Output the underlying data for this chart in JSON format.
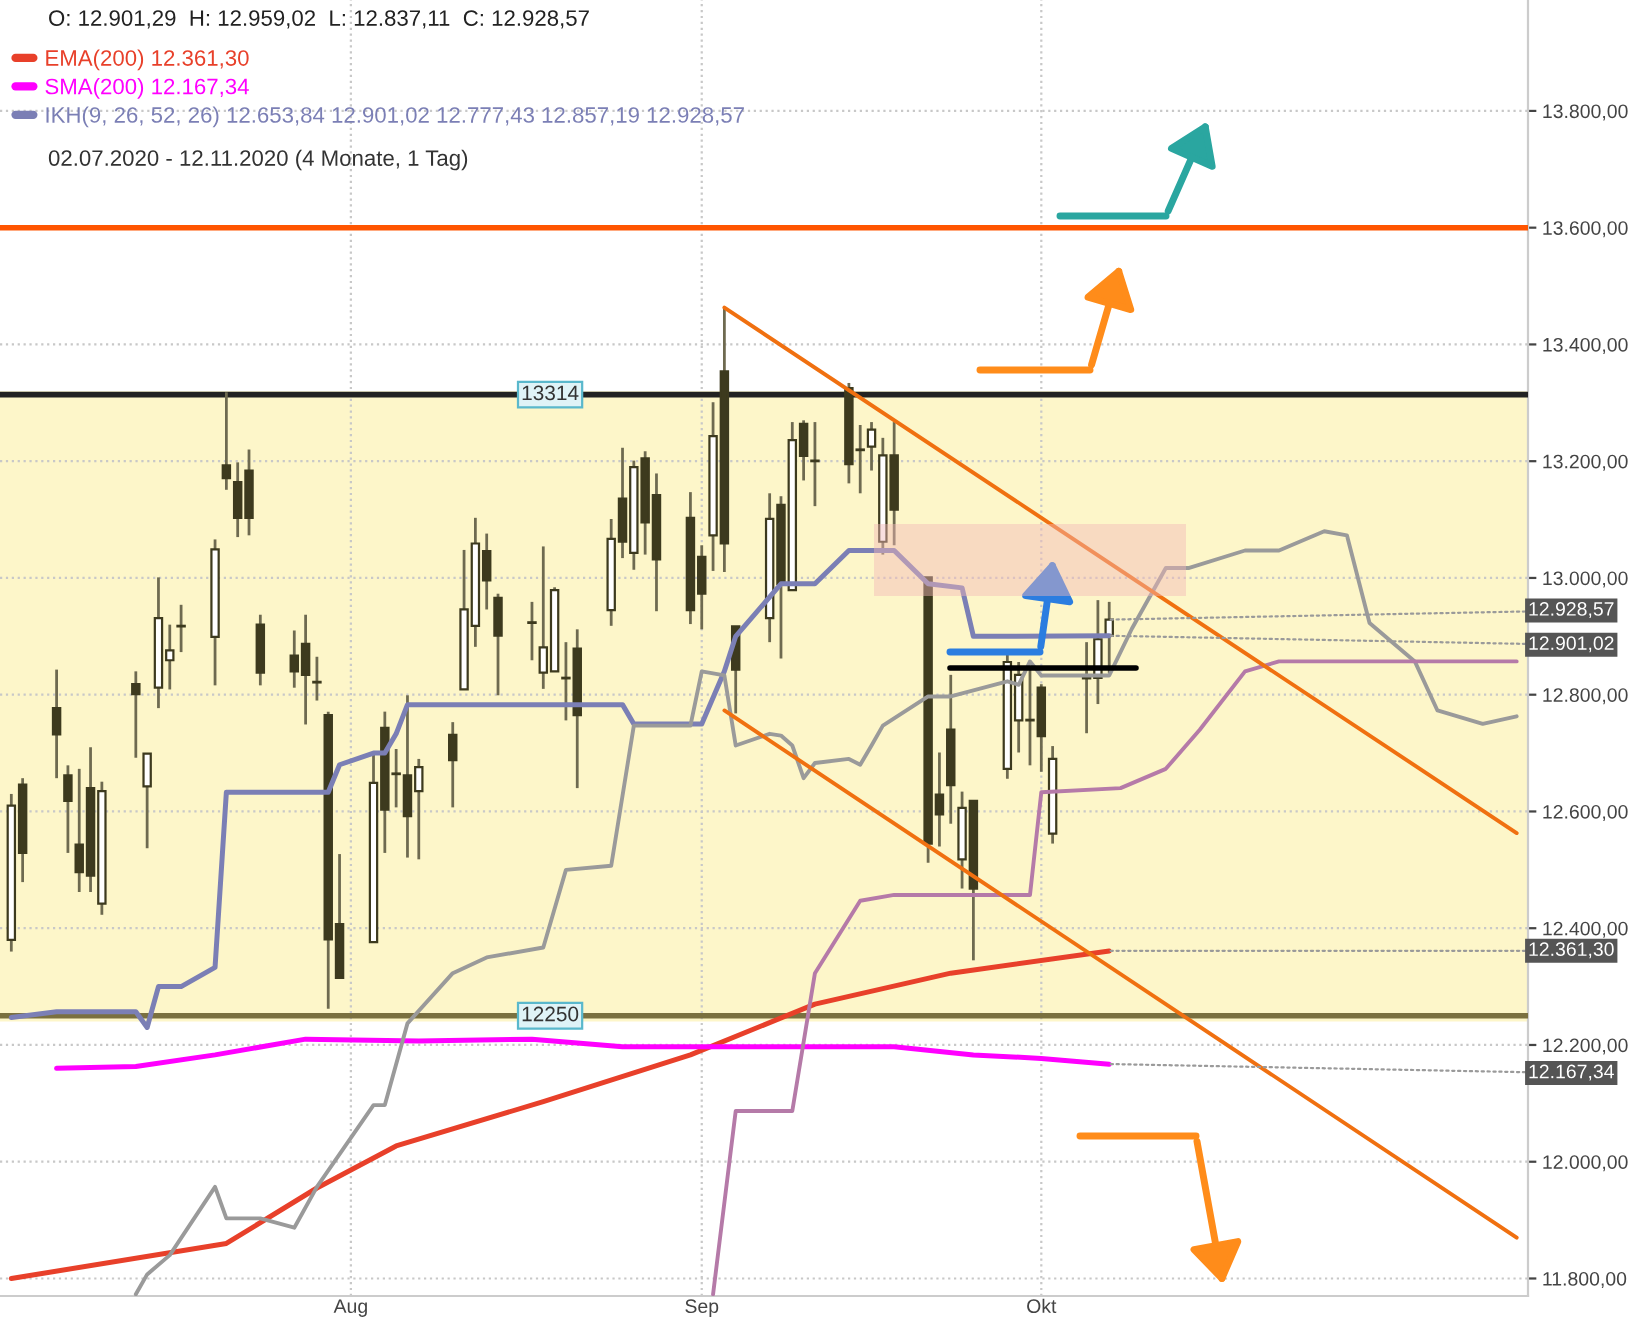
{
  "chart_data": {
    "type": "candlestick",
    "title": "O: 12.901,29  H: 12.959,02  L: 12.837,11  C: 12.928,57",
    "subtitle": "02.07.2020 - 12.11.2020 (4 Monate, 1 Tag)",
    "x": [
      "2020-07-02",
      "2020-07-03",
      "2020-07-06",
      "2020-07-07",
      "2020-07-08",
      "2020-07-09",
      "2020-07-10",
      "2020-07-13",
      "2020-07-14",
      "2020-07-15",
      "2020-07-16",
      "2020-07-17",
      "2020-07-20",
      "2020-07-21",
      "2020-07-22",
      "2020-07-23",
      "2020-07-24",
      "2020-07-27",
      "2020-07-28",
      "2020-07-29",
      "2020-07-30",
      "2020-07-31",
      "2020-08-03",
      "2020-08-04",
      "2020-08-05",
      "2020-08-06",
      "2020-08-07",
      "2020-08-10",
      "2020-08-11",
      "2020-08-12",
      "2020-08-13",
      "2020-08-14",
      "2020-08-17",
      "2020-08-18",
      "2020-08-19",
      "2020-08-20",
      "2020-08-21",
      "2020-08-24",
      "2020-08-25",
      "2020-08-26",
      "2020-08-27",
      "2020-08-28",
      "2020-08-31",
      "2020-09-01",
      "2020-09-02",
      "2020-09-03",
      "2020-09-04",
      "2020-09-07",
      "2020-09-08",
      "2020-09-09",
      "2020-09-10",
      "2020-09-11",
      "2020-09-14",
      "2020-09-15",
      "2020-09-16",
      "2020-09-17",
      "2020-09-18",
      "2020-09-21",
      "2020-09-22",
      "2020-09-23",
      "2020-09-24",
      "2020-09-25",
      "2020-09-28",
      "2020-09-29",
      "2020-09-30",
      "2020-10-01",
      "2020-10-02",
      "2020-10-05",
      "2020-10-06",
      "2020-10-07"
    ],
    "ohlc": [
      [
        12380,
        12630,
        12360,
        12610
      ],
      [
        12646,
        12657,
        12479,
        12529
      ],
      [
        12777,
        12843,
        12657,
        12732
      ],
      [
        12662,
        12679,
        12529,
        12618
      ],
      [
        12543,
        12673,
        12462,
        12496
      ],
      [
        12640,
        12710,
        12462,
        12490
      ],
      [
        12442,
        12651,
        12423,
        12635
      ],
      [
        12818,
        12840,
        12692,
        12801
      ],
      [
        12643,
        12699,
        12537,
        12699
      ],
      [
        12812,
        13001,
        12777,
        12931
      ],
      [
        12859,
        12920,
        12809,
        12876
      ],
      [
        12918,
        12954,
        12873,
        12917
      ],
      [
        12899,
        13066,
        12816,
        13049
      ],
      [
        13193,
        13318,
        13151,
        13171
      ],
      [
        13164,
        13198,
        13070,
        13103
      ],
      [
        13184,
        13220,
        13073,
        13103
      ],
      [
        12920,
        12937,
        12816,
        12838
      ],
      [
        12867,
        12910,
        12812,
        12840
      ],
      [
        12887,
        12937,
        12749,
        12834
      ],
      [
        12822,
        12865,
        12790,
        12821
      ],
      [
        12765,
        12771,
        12262,
        12381
      ],
      [
        12407,
        12527,
        12315,
        12315
      ],
      [
        12376,
        12699,
        12376,
        12649
      ],
      [
        12743,
        12771,
        12529,
        12603
      ],
      [
        12665,
        12707,
        12607,
        12664
      ],
      [
        12662,
        12799,
        12521,
        12592
      ],
      [
        12635,
        12690,
        12518,
        12676
      ],
      [
        12731,
        12753,
        12607,
        12688
      ],
      [
        12809,
        13048,
        12809,
        12946
      ],
      [
        12918,
        13103,
        12882,
        13059
      ],
      [
        13046,
        13076,
        12946,
        12996
      ],
      [
        12966,
        12973,
        12799,
        12901
      ],
      [
        12924,
        12959,
        12859,
        12923
      ],
      [
        12838,
        13054,
        12810,
        12881
      ],
      [
        12840,
        12984,
        12840,
        12979
      ],
      [
        12829,
        12890,
        12756,
        12828
      ],
      [
        12879,
        12912,
        12640,
        12765
      ],
      [
        12945,
        13101,
        12918,
        13067
      ],
      [
        13136,
        13223,
        13034,
        13062
      ],
      [
        13043,
        13201,
        13014,
        13190
      ],
      [
        13205,
        13217,
        13040,
        13095
      ],
      [
        13142,
        13179,
        12943,
        13032
      ],
      [
        13103,
        13147,
        12921,
        12945
      ],
      [
        13036,
        13056,
        12912,
        12973
      ],
      [
        13073,
        13301,
        13012,
        13243
      ],
      [
        13354,
        13463,
        13010,
        13059
      ],
      [
        12917,
        12917,
        12768,
        12843
      ],
      [
        12931,
        13145,
        12890,
        13101
      ],
      [
        13125,
        13140,
        12862,
        12990
      ],
      [
        12979,
        13267,
        12979,
        13236
      ],
      [
        13264,
        13270,
        13167,
        13209
      ],
      [
        13201,
        13267,
        13123,
        13200
      ],
      [
        13325,
        13334,
        13162,
        13195
      ],
      [
        13220,
        13262,
        13145,
        13219
      ],
      [
        13225,
        13267,
        13184,
        13254
      ],
      [
        13062,
        13240,
        13040,
        13210
      ],
      [
        13210,
        13267,
        13056,
        13117
      ],
      [
        13001,
        13001,
        12512,
        12545
      ],
      [
        12629,
        12701,
        12540,
        12595
      ],
      [
        12740,
        12834,
        12579,
        12645
      ],
      [
        12518,
        12634,
        12468,
        12606
      ],
      [
        12618,
        12618,
        12345,
        12468
      ],
      [
        12673,
        12873,
        12656,
        12856
      ],
      [
        12756,
        12856,
        12701,
        12834
      ],
      [
        12757,
        12845,
        12679,
        12756
      ],
      [
        12812,
        12818,
        12668,
        12729
      ],
      [
        12562,
        12712,
        12545,
        12690
      ],
      [
        12829,
        12890,
        12734,
        12828
      ],
      [
        12829,
        12962,
        12784,
        12895
      ],
      [
        12901.29,
        12959.02,
        12837.11,
        12928.57
      ]
    ],
    "series": [
      {
        "name": "EMA(200) 12.361,30",
        "type": "line",
        "color": "#e8402a",
        "x": [
          "2020-07-02",
          "2020-07-21",
          "2020-07-29",
          "2020-08-05",
          "2020-08-18",
          "2020-08-31",
          "2020-09-11",
          "2020-09-23",
          "2020-10-07"
        ],
        "values": [
          11800,
          11860,
          11955,
          12027,
          12103,
          12183,
          12270,
          12323,
          12361
        ]
      },
      {
        "name": "SMA(200) 12.167,34",
        "type": "line",
        "color": "#ff00ff",
        "x": [
          "2020-07-06",
          "2020-07-13",
          "2020-07-20",
          "2020-07-28",
          "2020-08-07",
          "2020-08-17",
          "2020-08-25",
          "2020-09-02",
          "2020-09-11",
          "2020-09-18",
          "2020-09-25",
          "2020-10-01",
          "2020-10-07"
        ],
        "values": [
          12160,
          12163,
          12183,
          12210,
          12207,
          12210,
          12197,
          12197,
          12197,
          12197,
          12183,
          12177,
          12167
        ]
      },
      {
        "name": "IKH(9, 26, 52, 26) 12.653,84 12.901,02 12.777,43 12.857,19 12.928,57",
        "type": "line",
        "color": "#7b7fb5",
        "x": [
          "2020-07-02",
          "2020-07-06",
          "2020-07-13",
          "2020-07-14",
          "2020-07-15",
          "2020-07-17",
          "2020-07-20",
          "2020-07-21",
          "2020-07-30",
          "2020-07-31",
          "2020-08-03",
          "2020-08-04",
          "2020-08-05",
          "2020-08-06",
          "2020-08-25",
          "2020-08-26",
          "2020-09-01",
          "2020-09-03",
          "2020-09-04",
          "2020-09-08",
          "2020-09-11",
          "2020-09-14",
          "2020-09-18",
          "2020-09-21",
          "2020-09-24",
          "2020-09-25",
          "2020-10-07"
        ],
        "values": [
          12247,
          12257,
          12257,
          12230,
          12300,
          12300,
          12333,
          12633,
          12633,
          12680,
          12700,
          12700,
          12733,
          12783,
          12783,
          12750,
          12750,
          12840,
          12900,
          12990,
          12990,
          13047,
          13047,
          12990,
          12983,
          12900,
          12901
        ]
      },
      {
        "type": "line",
        "color": "#9a9a9a",
        "x": [
          "2020-07-13",
          "2020-07-14",
          "2020-07-16",
          "2020-07-20",
          "2020-07-21",
          "2020-07-24",
          "2020-07-27",
          "2020-07-29",
          "2020-08-03",
          "2020-08-04",
          "2020-08-06",
          "2020-08-10",
          "2020-08-13",
          "2020-08-18",
          "2020-08-20",
          "2020-08-24",
          "2020-08-26",
          "2020-08-31",
          "2020-09-01",
          "2020-09-03",
          "2020-09-04",
          "2020-09-07",
          "2020-09-08",
          "2020-09-09",
          "2020-09-10",
          "2020-09-11",
          "2020-09-14",
          "2020-09-15",
          "2020-09-16",
          "2020-09-17",
          "2020-09-21",
          "2020-09-23",
          "2020-09-28",
          "2020-09-29",
          "2020-09-30",
          "2020-10-01",
          "2020-10-07",
          "2020-10-09",
          "2020-10-12",
          "2020-10-14",
          "2020-10-19",
          "2020-10-22",
          "2020-10-26",
          "2020-10-28",
          "2020-10-30",
          "2020-11-03",
          "2020-11-05",
          "2020-11-09",
          "2020-11-12"
        ],
        "values": [
          11773,
          11807,
          11840,
          11957,
          11903,
          11903,
          11887,
          11957,
          12097,
          12097,
          12237,
          12323,
          12350,
          12367,
          12500,
          12507,
          12747,
          12747,
          12840,
          12833,
          12713,
          12733,
          12730,
          12713,
          12657,
          12683,
          12690,
          12680,
          12713,
          12747,
          12797,
          12797,
          12823,
          12817,
          12857,
          12833,
          12833,
          12913,
          13017,
          13017,
          13047,
          13047,
          13080,
          13073,
          12923,
          12857,
          12773,
          12750,
          12763
        ]
      },
      {
        "type": "line",
        "color": "#b57aa8",
        "x": [
          "2020-09-02",
          "2020-09-04",
          "2020-09-09",
          "2020-09-11",
          "2020-09-15",
          "2020-09-18",
          "2020-09-30",
          "2020-10-01",
          "2020-10-08",
          "2020-10-12",
          "2020-10-15",
          "2020-10-19",
          "2020-10-22",
          "2020-11-12"
        ],
        "values": [
          11773,
          12087,
          12087,
          12323,
          12447,
          12457,
          12457,
          12633,
          12640,
          12673,
          12740,
          12840,
          12857,
          12857
        ]
      },
      {
        "type": "line",
        "color": "#f07010",
        "x": [
          "2020-09-03",
          "2020-11-12"
        ],
        "values": [
          13463,
          12563
        ]
      },
      {
        "type": "line",
        "color": "#f07010",
        "x": [
          "2020-09-03",
          "2020-11-12"
        ],
        "values": [
          12773,
          11870
        ]
      }
    ],
    "bands": [
      {
        "axis": "y",
        "from": 12240,
        "to": 13320,
        "color": "#fdf6c9"
      }
    ],
    "ref_lines": [
      {
        "axis": "y",
        "value": 13600,
        "color": "#ff5500"
      },
      {
        "axis": "y",
        "value": 13314,
        "label": "13314",
        "color": "#222222"
      },
      {
        "axis": "y",
        "value": 12250,
        "label": "12250",
        "color": "#7a7040"
      }
    ],
    "annotations": [
      {
        "text": "12.928,57",
        "x": "2020-10-07",
        "y": 12928.57
      },
      {
        "text": "12.901,02",
        "x": "2020-10-07",
        "y": 12901.02
      },
      {
        "text": "12.361,30",
        "x": "2020-10-07",
        "y": 12361.3
      },
      {
        "text": "12.167,34",
        "x": "2020-10-07",
        "y": 12167.34
      }
    ],
    "xlim": [
      "2020-07-01",
      "2020-11-13"
    ],
    "xticks": [
      {
        "value": "2020-08-01",
        "label": "Aug"
      },
      {
        "value": "2020-09-01",
        "label": "Sep"
      },
      {
        "value": "2020-10-01",
        "label": "Okt"
      }
    ],
    "ylim": [
      11770,
      13990
    ],
    "yticks": [
      {
        "value": 11800,
        "label": "11.800,00"
      },
      {
        "value": 12000,
        "label": "12.000,00"
      },
      {
        "value": 12200,
        "label": "12.200,00"
      },
      {
        "value": 12400,
        "label": "12.400,00"
      },
      {
        "value": 12600,
        "label": "12.600,00"
      },
      {
        "value": 12800,
        "label": "12.800,00"
      },
      {
        "value": 13000,
        "label": "13.000,00"
      },
      {
        "value": 13200,
        "label": "13.200,00"
      },
      {
        "value": 13400,
        "label": "13.400,00"
      },
      {
        "value": 13600,
        "label": "13.600,00"
      },
      {
        "value": 13800,
        "label": "13.800,00"
      }
    ],
    "grid": true,
    "legend": "top left"
  }
}
